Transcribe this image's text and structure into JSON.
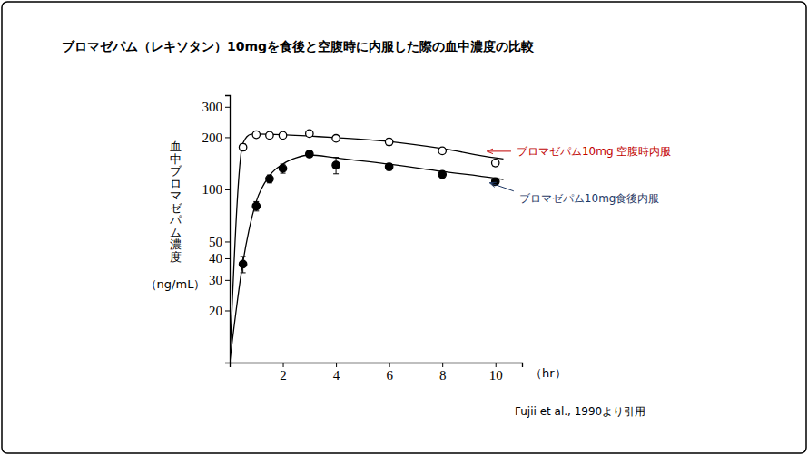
{
  "chart_data": {
    "type": "line",
    "title": "ブロマゼパム（レキソタン）10mgを食後と空腹時に内服した際の血中濃度の比較",
    "y_label": "血中ブロマゼパム濃度",
    "y_unit": "（ng/mL）",
    "x_label": "（hr）",
    "source": "Fujii et al., 1990より引用",
    "log": "y",
    "grid": false,
    "xlim": [
      0,
      11
    ],
    "xticks": [
      2,
      4,
      6,
      8,
      10
    ],
    "ylim": [
      10,
      350
    ],
    "yticks": [
      20,
      30,
      40,
      50,
      100,
      200,
      300
    ],
    "series": [
      {
        "type": "scatter",
        "marker": "open_circle",
        "color": "#000000",
        "x": [
          0.5,
          1,
          1.5,
          2,
          3,
          4,
          6,
          8,
          10
        ],
        "values": [
          175,
          207,
          205,
          205,
          210,
          197,
          188,
          167,
          142
        ],
        "errors": [
          8,
          6,
          5,
          6,
          7,
          6,
          8,
          6,
          6
        ]
      },
      {
        "type": "scatter",
        "marker": "circle",
        "color": "#000000",
        "x": [
          0.5,
          1,
          1.5,
          2,
          3,
          4,
          6,
          8,
          10
        ],
        "values": [
          37,
          80,
          115,
          132,
          160,
          138,
          135,
          122,
          111
        ],
        "errors": [
          4,
          5,
          6,
          8,
          5,
          15,
          6,
          5,
          5
        ]
      },
      {
        "type": "line",
        "marker": "none",
        "line_style": "solid",
        "color": "#000000",
        "x": [
          0,
          0.5,
          0.8,
          1,
          2,
          3,
          4,
          6,
          8,
          10,
          10.3
        ],
        "values": [
          10,
          185,
          208,
          209,
          207,
          203,
          199,
          189,
          172,
          152,
          150
        ]
      },
      {
        "type": "line",
        "marker": "none",
        "line_style": "solid",
        "color": "#000000",
        "x": [
          0,
          0.5,
          1,
          1.5,
          2,
          2.5,
          3,
          4,
          6,
          8,
          10,
          10.3
        ],
        "values": [
          10,
          38,
          85,
          120,
          140,
          152,
          158,
          152,
          140,
          127,
          116,
          114
        ]
      }
    ],
    "annotations": [
      {
        "text": "ブロマゼパム10mg 空腹時内服",
        "color": "#c00000",
        "x": 9.7,
        "y": 166
      },
      {
        "text": "ブロマゼパム10mg食後内服",
        "color": "#1f3864",
        "x": 9.8,
        "y": 109
      }
    ]
  }
}
